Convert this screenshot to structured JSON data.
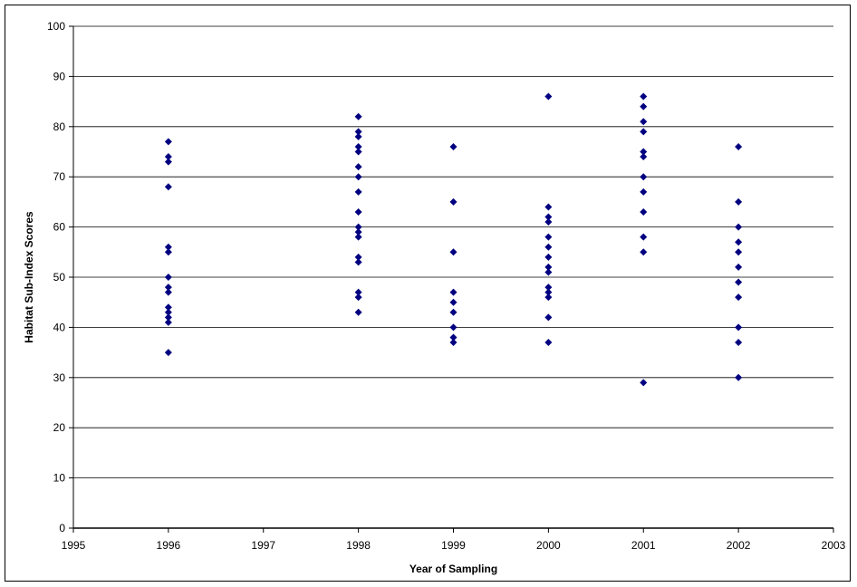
{
  "chart_data": {
    "type": "scatter",
    "title": "",
    "xlabel": "Year of Sampling",
    "ylabel": "Habitat Sub-Index Scores",
    "xlim": [
      1995,
      2003
    ],
    "ylim": [
      0,
      100
    ],
    "x_ticks": [
      1995,
      1996,
      1997,
      1998,
      1999,
      2000,
      2001,
      2002,
      2003
    ],
    "x_tick_labels": [
      "1995",
      "1996",
      "1997",
      "1998",
      "1999",
      "2000",
      "2001",
      "2002",
      "2003"
    ],
    "y_ticks": [
      0,
      10,
      20,
      30,
      40,
      50,
      60,
      70,
      80,
      90,
      100
    ],
    "y_tick_labels": [
      "0",
      "10",
      "20",
      "30",
      "40",
      "50",
      "60",
      "70",
      "80",
      "90",
      "100"
    ],
    "grid": "horizontal",
    "legend": "none",
    "marker_color": "#000080",
    "series": [
      {
        "points": [
          [
            1996,
            77
          ],
          [
            1996,
            74
          ],
          [
            1996,
            73
          ],
          [
            1996,
            68
          ],
          [
            1996,
            56
          ],
          [
            1996,
            55
          ],
          [
            1996,
            50
          ],
          [
            1996,
            48
          ],
          [
            1996,
            47
          ],
          [
            1996,
            44
          ],
          [
            1996,
            43
          ],
          [
            1996,
            42
          ],
          [
            1996,
            41
          ],
          [
            1996,
            35
          ],
          [
            1998,
            82
          ],
          [
            1998,
            79
          ],
          [
            1998,
            78
          ],
          [
            1998,
            76
          ],
          [
            1998,
            75
          ],
          [
            1998,
            72
          ],
          [
            1998,
            70
          ],
          [
            1998,
            67
          ],
          [
            1998,
            63
          ],
          [
            1998,
            60
          ],
          [
            1998,
            59
          ],
          [
            1998,
            58
          ],
          [
            1998,
            54
          ],
          [
            1998,
            53
          ],
          [
            1998,
            47
          ],
          [
            1998,
            46
          ],
          [
            1998,
            43
          ],
          [
            1999,
            76
          ],
          [
            1999,
            65
          ],
          [
            1999,
            55
          ],
          [
            1999,
            47
          ],
          [
            1999,
            45
          ],
          [
            1999,
            43
          ],
          [
            1999,
            40
          ],
          [
            1999,
            38
          ],
          [
            1999,
            37
          ],
          [
            2000,
            86
          ],
          [
            2000,
            64
          ],
          [
            2000,
            62
          ],
          [
            2000,
            61
          ],
          [
            2000,
            58
          ],
          [
            2000,
            56
          ],
          [
            2000,
            54
          ],
          [
            2000,
            52
          ],
          [
            2000,
            51
          ],
          [
            2000,
            48
          ],
          [
            2000,
            47
          ],
          [
            2000,
            46
          ],
          [
            2000,
            42
          ],
          [
            2000,
            37
          ],
          [
            2001,
            86
          ],
          [
            2001,
            84
          ],
          [
            2001,
            81
          ],
          [
            2001,
            79
          ],
          [
            2001,
            75
          ],
          [
            2001,
            74
          ],
          [
            2001,
            70
          ],
          [
            2001,
            67
          ],
          [
            2001,
            63
          ],
          [
            2001,
            58
          ],
          [
            2001,
            55
          ],
          [
            2001,
            29
          ],
          [
            2002,
            76
          ],
          [
            2002,
            65
          ],
          [
            2002,
            60
          ],
          [
            2002,
            57
          ],
          [
            2002,
            55
          ],
          [
            2002,
            52
          ],
          [
            2002,
            49
          ],
          [
            2002,
            46
          ],
          [
            2002,
            40
          ],
          [
            2002,
            37
          ],
          [
            2002,
            30
          ]
        ]
      }
    ]
  }
}
